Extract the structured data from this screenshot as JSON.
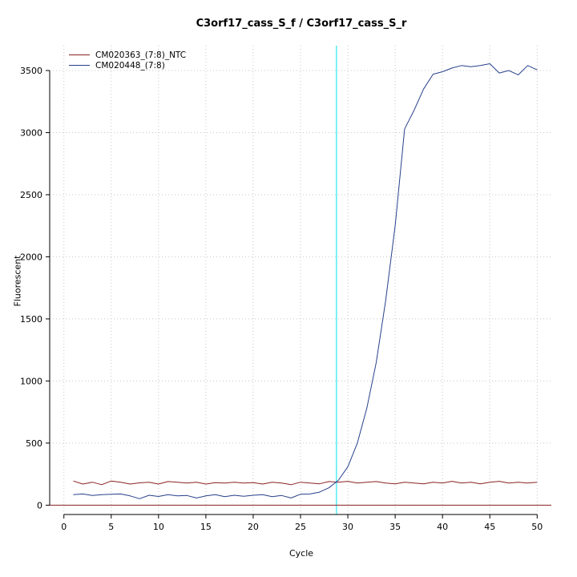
{
  "figure": {
    "title": "C3orf17_cass_S_f / C3orf17_cass_S_r",
    "xlabel": "Cycle",
    "ylabel": "Fluorescent"
  },
  "legend": {
    "items": [
      {
        "label": "CM020363_(7:8)_NTC",
        "color": "#8B2323"
      },
      {
        "label": "CM020448_(7:8)",
        "color": "#27408B"
      }
    ]
  },
  "chart_data": {
    "type": "line",
    "title": "C3orf17_cass_S_f / C3orf17_cass_S_r",
    "xlabel": "Cycle",
    "ylabel": "Fluorescent",
    "xlim": [
      -1.5,
      51.5
    ],
    "ylim": [
      -75,
      3700
    ],
    "xticks": [
      0,
      5,
      10,
      15,
      20,
      25,
      30,
      35,
      40,
      45,
      50
    ],
    "yticks": [
      0,
      500,
      1000,
      1500,
      2000,
      2500,
      3000,
      3500
    ],
    "grid": true,
    "grid_color": "#c8c8c8",
    "legend_position": "top-left",
    "threshold_line": {
      "x": 28.8,
      "color": "#00e5ee"
    },
    "baseline": {
      "y": 0,
      "color": "#8B2323"
    },
    "series": [
      {
        "name": "CM020363_(7:8)_NTC",
        "color": "#8B2323",
        "x": [
          1,
          2,
          3,
          4,
          5,
          6,
          7,
          8,
          9,
          10,
          11,
          12,
          13,
          14,
          15,
          16,
          17,
          18,
          19,
          20,
          21,
          22,
          23,
          24,
          25,
          26,
          27,
          28,
          29,
          30,
          31,
          32,
          33,
          34,
          35,
          36,
          37,
          38,
          39,
          40,
          41,
          42,
          43,
          44,
          45,
          46,
          47,
          48,
          49,
          50
        ],
        "values": [
          195,
          170,
          185,
          165,
          195,
          185,
          170,
          180,
          185,
          170,
          190,
          185,
          178,
          185,
          170,
          182,
          178,
          185,
          178,
          182,
          170,
          185,
          178,
          165,
          185,
          178,
          172,
          190,
          185,
          192,
          178,
          185,
          190,
          178,
          172,
          185,
          178,
          172,
          185,
          178,
          192,
          178,
          185,
          172,
          185,
          192,
          178,
          185,
          178,
          185
        ]
      },
      {
        "name": "CM020448_(7:8)",
        "color": "#27408B",
        "x": [
          1,
          2,
          3,
          4,
          5,
          6,
          7,
          8,
          9,
          10,
          11,
          12,
          13,
          14,
          15,
          16,
          17,
          18,
          19,
          20,
          21,
          22,
          23,
          24,
          25,
          26,
          27,
          28,
          29,
          30,
          31,
          32,
          33,
          34,
          35,
          36,
          37,
          38,
          39,
          40,
          41,
          42,
          43,
          44,
          45,
          46,
          47,
          48,
          49,
          50
        ],
        "values": [
          85,
          90,
          78,
          85,
          88,
          90,
          75,
          52,
          80,
          70,
          85,
          75,
          78,
          58,
          75,
          85,
          68,
          80,
          72,
          80,
          85,
          68,
          78,
          58,
          88,
          90,
          105,
          140,
          200,
          310,
          500,
          780,
          1150,
          1650,
          2250,
          3030,
          3180,
          3350,
          3470,
          3490,
          3520,
          3540,
          3530,
          3540,
          3555,
          3480,
          3500,
          3465,
          3540,
          3505
        ]
      }
    ]
  }
}
